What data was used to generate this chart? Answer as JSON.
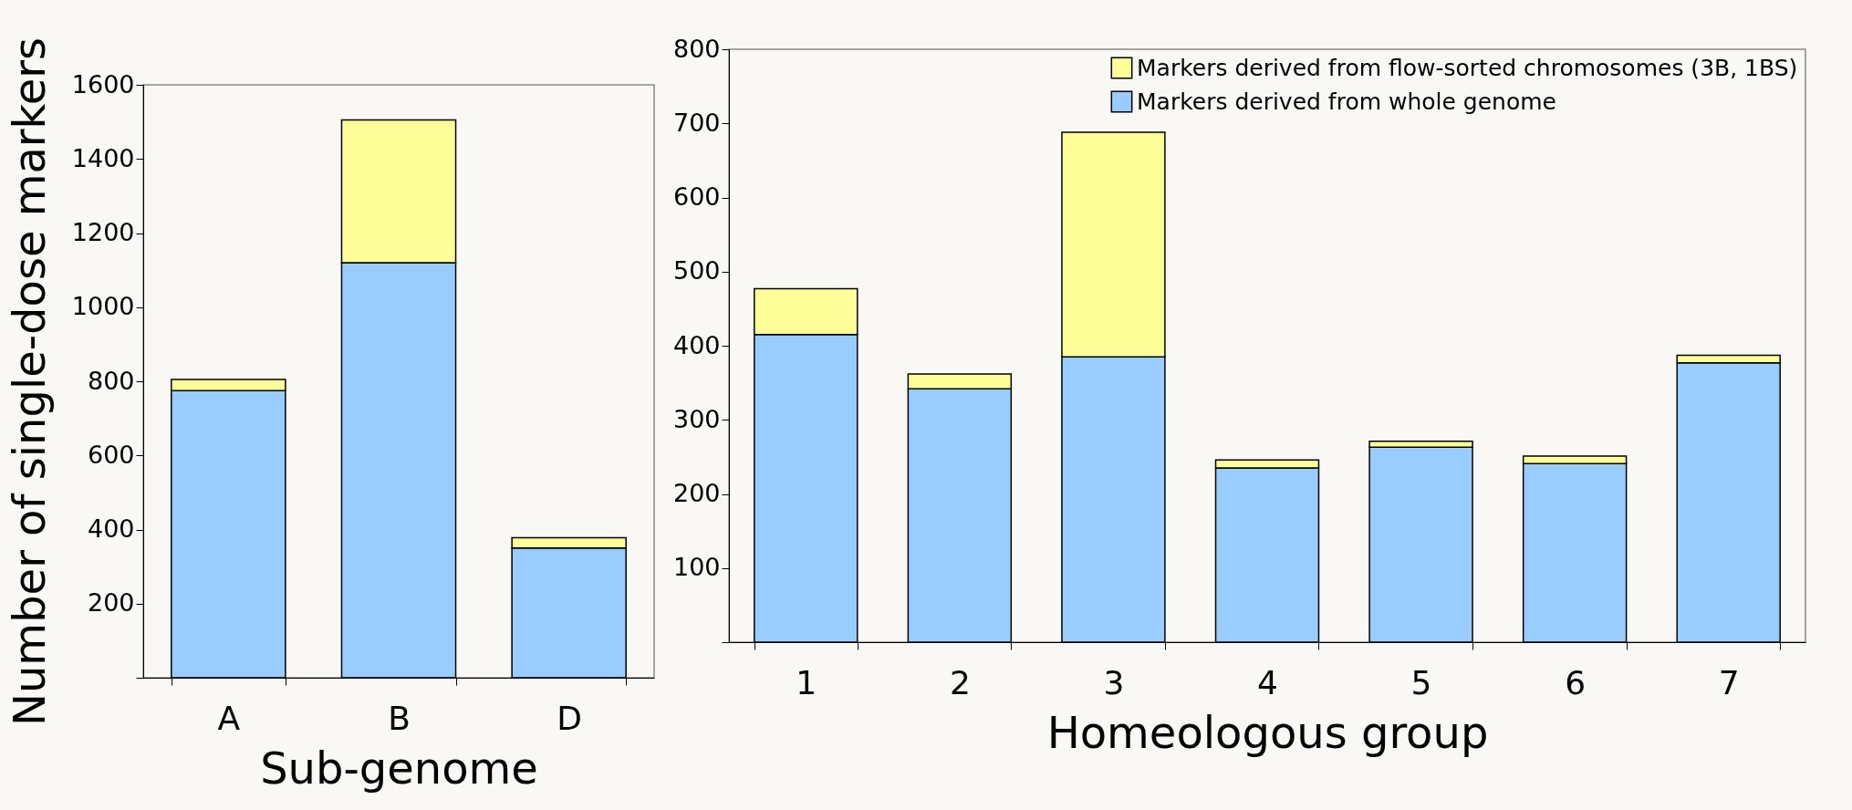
{
  "chart_data": [
    {
      "type": "bar",
      "stacked": true,
      "xlabel": "Sub-genome",
      "ylabel": "Number of single-dose markers",
      "categories": [
        "A",
        "B",
        "D"
      ],
      "series": [
        {
          "color": "#99ccff",
          "values": [
            775,
            1120,
            350
          ]
        },
        {
          "color": "#ffff99",
          "values": [
            30,
            385,
            28
          ]
        }
      ],
      "ylim": [
        0,
        1600
      ],
      "yticks": [
        {
          "value": 0,
          "label": null
        },
        200,
        400,
        600,
        800,
        1000,
        1200,
        1400,
        1600
      ],
      "grid": false,
      "legend": false
    },
    {
      "type": "bar",
      "stacked": true,
      "xlabel": "Homeologous group",
      "categories": [
        "1",
        "2",
        "3",
        "4",
        "5",
        "6",
        "7"
      ],
      "series": [
        {
          "name": "Markers derived from whole genome",
          "color": "#99ccff",
          "values": [
            415,
            342,
            385,
            235,
            263,
            241,
            377
          ]
        },
        {
          "name": "Markers derived from flow-sorted chromosomes (3B, 1BS)",
          "color": "#ffff99",
          "values": [
            62,
            20,
            303,
            11,
            8,
            10,
            10
          ]
        }
      ],
      "ylim": [
        0,
        800
      ],
      "yticks": [
        {
          "value": 0,
          "label": null
        },
        100,
        200,
        300,
        400,
        500,
        600,
        700,
        800
      ],
      "grid": false,
      "legend": "top right"
    }
  ]
}
